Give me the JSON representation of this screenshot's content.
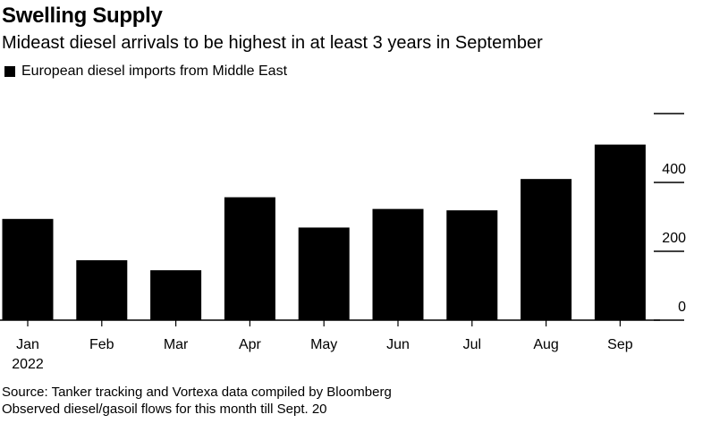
{
  "title": "Swelling Supply",
  "subtitle": "Mideast diesel arrivals to be highest in at least 3 years in September",
  "legend": {
    "label": "European diesel imports from Middle East",
    "color": "#000000"
  },
  "chart_data": {
    "type": "bar",
    "categories": [
      "Jan",
      "Feb",
      "Mar",
      "Apr",
      "May",
      "Jun",
      "Jul",
      "Aug",
      "Sep"
    ],
    "year_label": "2022",
    "series": [
      {
        "name": "European diesel imports from Middle East",
        "values": [
          294,
          174,
          145,
          357,
          269,
          323,
          319,
          410,
          510
        ]
      }
    ],
    "yticks": [
      0,
      200,
      400
    ],
    "ylim": [
      0,
      600
    ],
    "title": "Swelling Supply",
    "xlabel": "",
    "ylabel": "",
    "bar_color": "#000000"
  },
  "footer": {
    "source": "Source: Tanker tracking and Vortexa data compiled by Bloomberg",
    "note": "Observed diesel/gasoil flows for this month till Sept. 20"
  }
}
